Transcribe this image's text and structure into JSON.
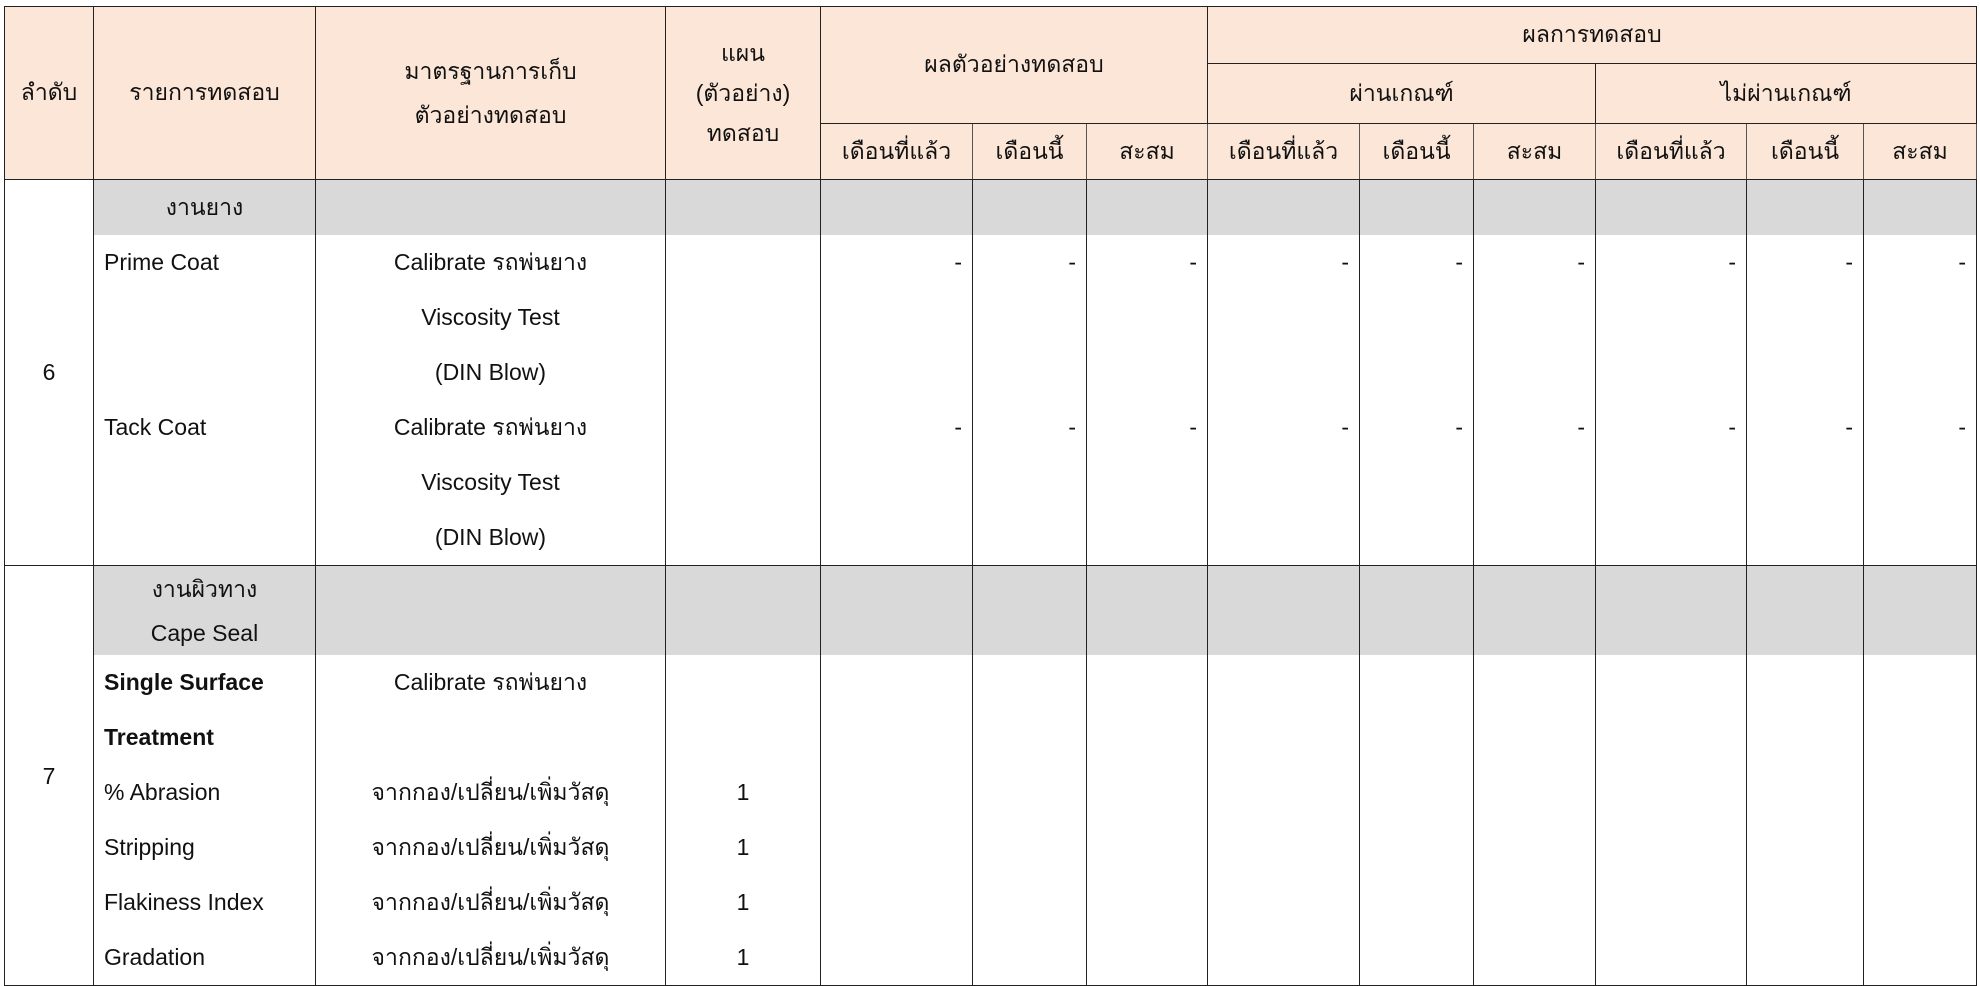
{
  "header": {
    "seq": "ลำดับ",
    "item": "รายการทดสอบ",
    "standard": "มาตรฐานการเก็บตัวอย่างทดสอบ",
    "plan": "แผน (ตัวอย่าง) ทดสอบ",
    "sample_results": "ผลตัวอย่างทดสอบ",
    "test_results": "ผลการทดสอบ",
    "pass": "ผ่านเกณฑ์",
    "fail": "ไม่ผ่านเกณฑ์",
    "sub": [
      "เดือนที่แล้ว",
      "เดือนนี้",
      "สะสม",
      "เดือนที่แล้ว",
      "เดือนนี้",
      "สะสม",
      "เดือนที่แล้ว",
      "เดือนนี้",
      "สะสม"
    ]
  },
  "groups": [
    {
      "seq": "6",
      "title": "งานยาง",
      "rows": [
        {
          "item": "Prime Coat",
          "standard": "Calibrate รถพ่นยาง",
          "plan": "",
          "values": [
            "-",
            "-",
            "-",
            "-",
            "-",
            "-",
            "-",
            "-",
            "-"
          ]
        },
        {
          "item": "",
          "standard": "Viscosity Test",
          "plan": "",
          "values": [
            "",
            "",
            "",
            "",
            "",
            "",
            "",
            "",
            ""
          ]
        },
        {
          "item": "",
          "standard": "(DIN Blow)",
          "plan": "",
          "values": [
            "",
            "",
            "",
            "",
            "",
            "",
            "",
            "",
            ""
          ]
        },
        {
          "item": "Tack Coat",
          "standard": "Calibrate รถพ่นยาง",
          "plan": "",
          "values": [
            "-",
            "-",
            "-",
            "-",
            "-",
            "-",
            "-",
            "-",
            "-"
          ]
        },
        {
          "item": "",
          "standard": "Viscosity Test",
          "plan": "",
          "values": [
            "",
            "",
            "",
            "",
            "",
            "",
            "",
            "",
            ""
          ]
        },
        {
          "item": "",
          "standard": "(DIN Blow)",
          "plan": "",
          "values": [
            "",
            "",
            "",
            "",
            "",
            "",
            "",
            "",
            ""
          ]
        }
      ]
    },
    {
      "seq": "7",
      "title": "งานผิวทาง\nCape Seal",
      "rows": [
        {
          "item": "Single Surface",
          "bold": true,
          "standard": "Calibrate รถพ่นยาง",
          "plan": "",
          "values": [
            "",
            "",
            "",
            "",
            "",
            "",
            "",
            "",
            ""
          ]
        },
        {
          "item": "Treatment",
          "bold": true,
          "standard": "",
          "plan": "",
          "values": [
            "",
            "",
            "",
            "",
            "",
            "",
            "",
            "",
            ""
          ]
        },
        {
          "item": "% Abrasion",
          "standard": "จากกอง/เปลี่ยน/เพิ่มวัสดุ",
          "plan": "1",
          "values": [
            "",
            "",
            "",
            "",
            "",
            "",
            "",
            "",
            ""
          ]
        },
        {
          "item": "Stripping",
          "standard": "จากกอง/เปลี่ยน/เพิ่มวัสดุ",
          "plan": "1",
          "values": [
            "",
            "",
            "",
            "",
            "",
            "",
            "",
            "",
            ""
          ]
        },
        {
          "item": "Flakiness Index",
          "standard": "จากกอง/เปลี่ยน/เพิ่มวัสดุ",
          "plan": "1",
          "values": [
            "",
            "",
            "",
            "",
            "",
            "",
            "",
            "",
            ""
          ]
        },
        {
          "item": "Gradation",
          "standard": "จากกอง/เปลี่ยน/เพิ่มวัสดุ",
          "plan": "1",
          "values": [
            "",
            "",
            "",
            "",
            "",
            "",
            "",
            "",
            ""
          ]
        }
      ]
    }
  ]
}
